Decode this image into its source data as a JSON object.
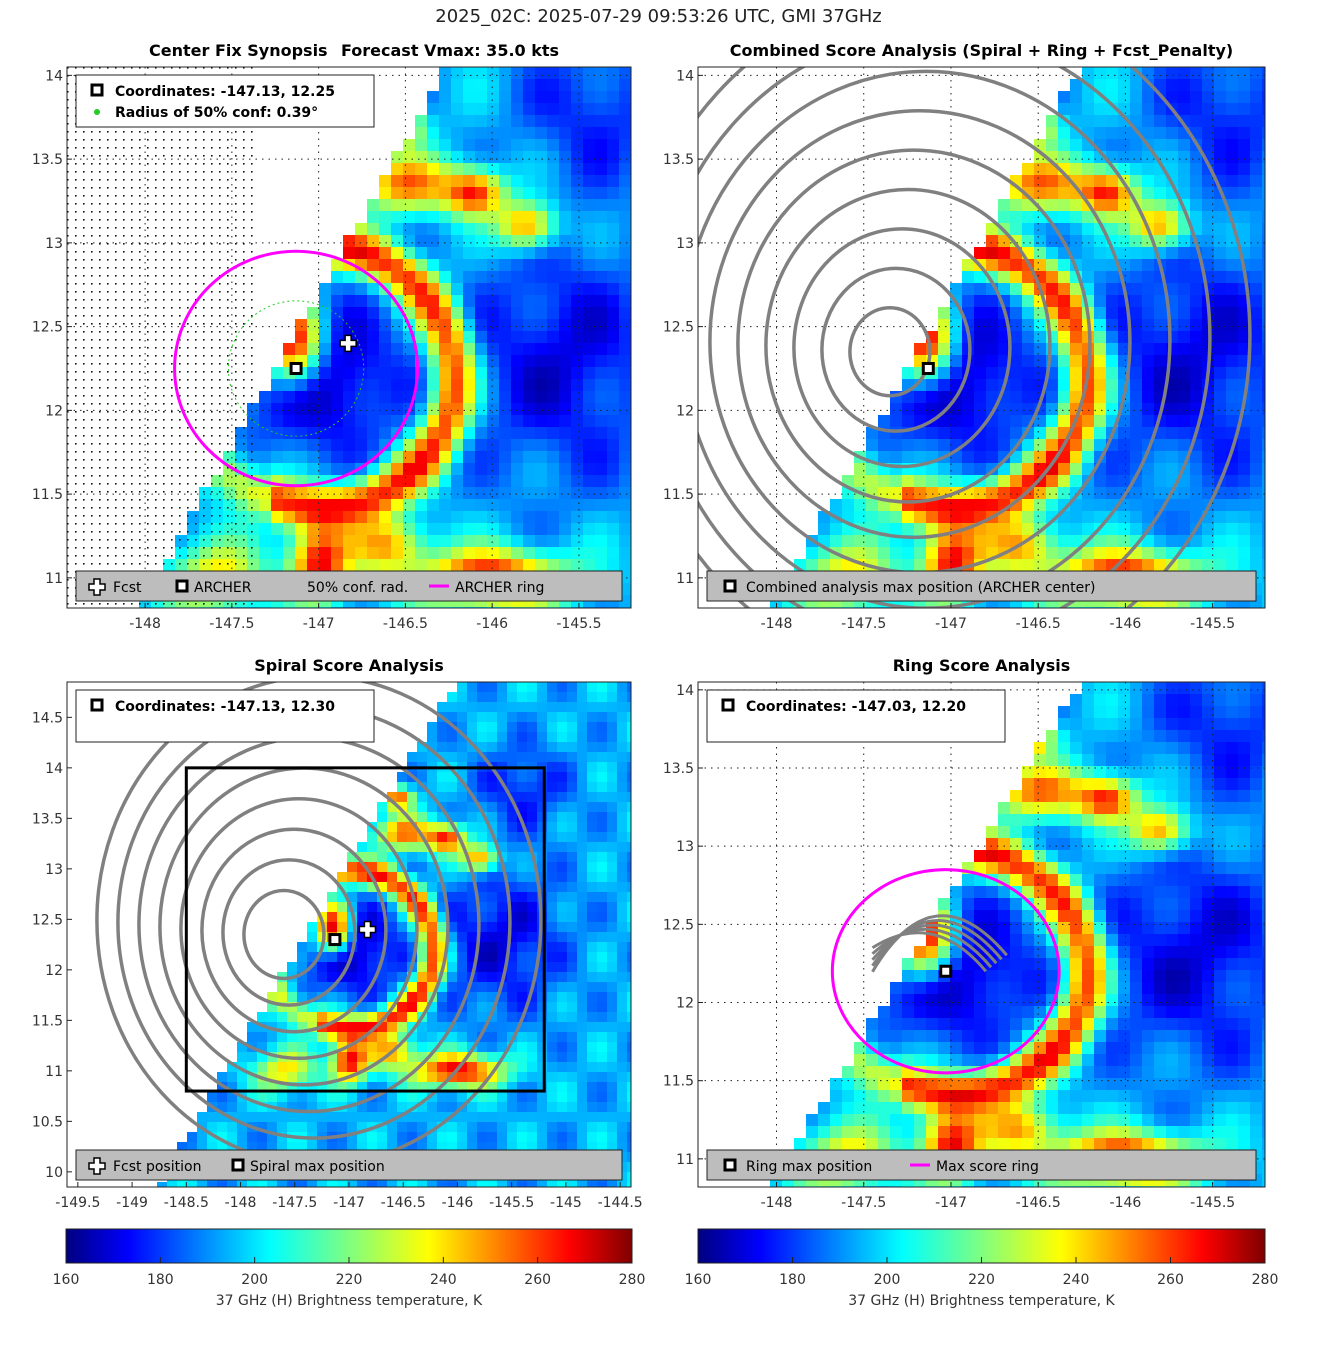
{
  "suptitle": "2025_02C: 2025-07-29 09:53:26 UTC, GMI 37GHz",
  "colorbar": {
    "label": "37 GHz (H) Brightness temperature, K",
    "ticks": [
      "160",
      "180",
      "200",
      "220",
      "240",
      "260",
      "280"
    ]
  },
  "panels": [
    {
      "id": "synopsis",
      "title_left": "Center Fix Synopsis",
      "title_right": "Forecast Vmax: 35.0 kts",
      "xticks": [
        "-148",
        "-147.5",
        "-147",
        "-146.5",
        "-146",
        "-145.5"
      ],
      "yticks": [
        "11",
        "11.5",
        "12",
        "12.5",
        "13",
        "13.5",
        "14"
      ],
      "info": [
        "Coordinates: -147.13, 12.25",
        "Radius of 50% conf: 0.39°"
      ],
      "legend": [
        "Fcst",
        "ARCHER",
        "50% conf. rad.",
        "ARCHER ring"
      ]
    },
    {
      "id": "combined",
      "title": "Combined Score Analysis (Spiral + Ring + Fcst_Penalty)",
      "xticks": [
        "-148",
        "-147.5",
        "-147",
        "-146.5",
        "-146",
        "-145.5"
      ],
      "yticks": [
        "11",
        "11.5",
        "12",
        "12.5",
        "13",
        "13.5",
        "14"
      ],
      "legend": [
        "Combined analysis max position (ARCHER center)"
      ]
    },
    {
      "id": "spiral",
      "title": "Spiral Score Analysis",
      "xticks": [
        "-149.5",
        "-149",
        "-148.5",
        "-148",
        "-147.5",
        "-147",
        "-146.5",
        "-146",
        "-145.5",
        "-145",
        "-144.5"
      ],
      "yticks": [
        "10",
        "10.5",
        "11",
        "11.5",
        "12",
        "12.5",
        "13",
        "13.5",
        "14",
        "14.5"
      ],
      "info": [
        "Coordinates: -147.13, 12.30"
      ],
      "legend": [
        "Fcst position",
        "Spiral max position"
      ]
    },
    {
      "id": "ring",
      "title": "Ring Score Analysis",
      "xticks": [
        "-148",
        "-147.5",
        "-147",
        "-146.5",
        "-146",
        "-145.5"
      ],
      "yticks": [
        "11",
        "11.5",
        "12",
        "12.5",
        "13",
        "13.5",
        "14"
      ],
      "info": [
        "Coordinates: -147.03, 12.20"
      ],
      "legend": [
        "Ring max position",
        "Max score ring"
      ]
    }
  ],
  "chart_data": [
    {
      "type": "heatmap",
      "title": "Center Fix Synopsis",
      "subtitle": "Forecast Vmax: 35.0 kts",
      "xlim": [
        -148.45,
        -145.2
      ],
      "ylim": [
        10.82,
        14.05
      ],
      "archer_center": [
        -147.13,
        12.25
      ],
      "forecast_position": [
        -146.83,
        12.4
      ],
      "conf_radius_deg": 0.39,
      "archer_ring": {
        "center": [
          -147.13,
          12.25
        ],
        "radius_deg": 0.7
      },
      "value_range_K": [
        160,
        280
      ]
    },
    {
      "type": "heatmap",
      "title": "Combined Score Analysis (Spiral + Ring + Fcst_Penalty)",
      "xlim": [
        -148.45,
        -145.2
      ],
      "ylim": [
        10.82,
        14.05
      ],
      "max_position": [
        -147.13,
        12.25
      ]
    },
    {
      "type": "heatmap",
      "title": "Spiral Score Analysis",
      "xlim": [
        -149.6,
        -144.4
      ],
      "ylim": [
        9.85,
        14.85
      ],
      "spiral_max": [
        -147.13,
        12.3
      ],
      "forecast_position": [
        -146.83,
        12.4
      ],
      "analysis_box": {
        "x": [
          -148.5,
          -145.2
        ],
        "y": [
          10.8,
          14.0
        ]
      }
    },
    {
      "type": "heatmap",
      "title": "Ring Score Analysis",
      "xlim": [
        -148.45,
        -145.2
      ],
      "ylim": [
        10.82,
        14.05
      ],
      "ring_max": [
        -147.03,
        12.2
      ],
      "max_score_ring": {
        "center": [
          -147.03,
          12.2
        ],
        "radius_deg": 0.65
      }
    }
  ],
  "colors": {
    "ring": "#ff00ff",
    "contour": "#808080",
    "legend_bg": "#bdbdbd"
  }
}
